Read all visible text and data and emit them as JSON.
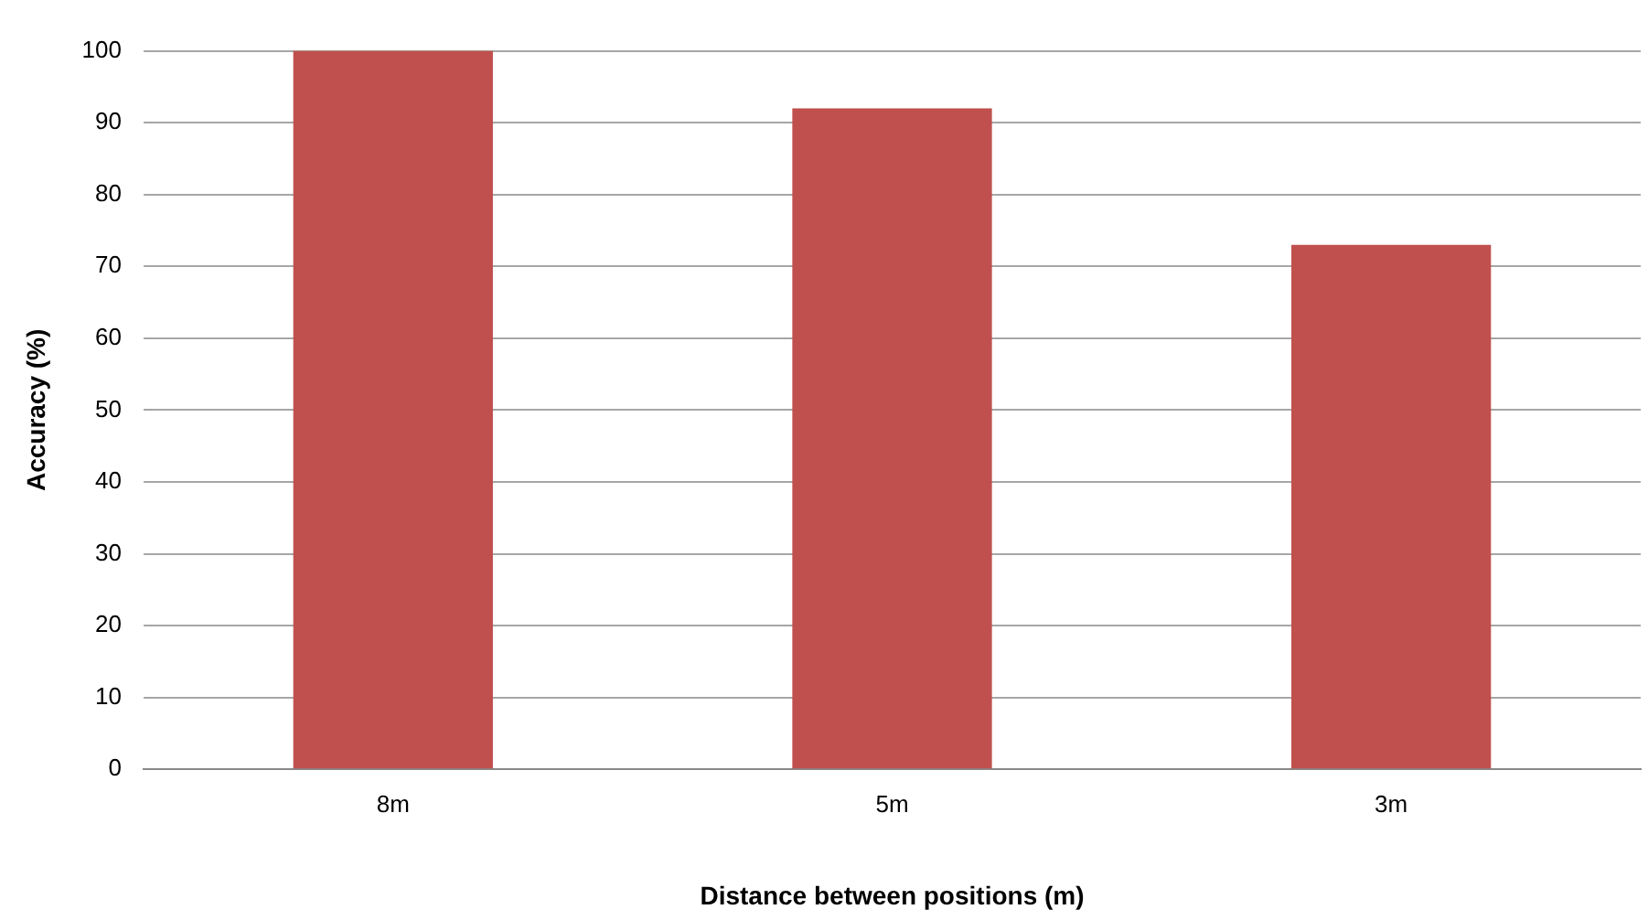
{
  "chart_data": {
    "type": "bar",
    "xlabel": "Distance between positions (m)",
    "ylabel": "Accuracy (%)",
    "categories": [
      "8m",
      "5m",
      "3m"
    ],
    "values": [
      100,
      92,
      73
    ],
    "color": "#c0504d",
    "ylim": [
      0,
      100
    ],
    "yticks": [
      0,
      10,
      20,
      30,
      40,
      50,
      60,
      70,
      80,
      90,
      100
    ],
    "grid": "y",
    "legend": false
  }
}
